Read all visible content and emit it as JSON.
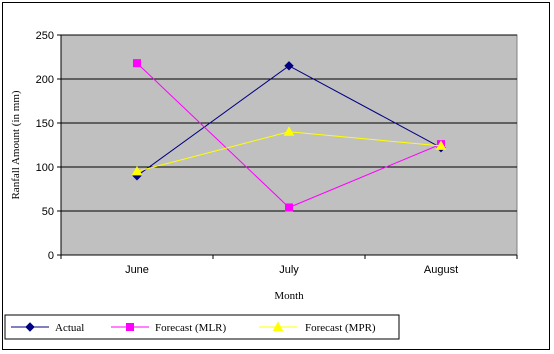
{
  "chart_data": {
    "type": "line",
    "categories": [
      "June",
      "July",
      "August"
    ],
    "series": [
      {
        "name": "Actual",
        "values": [
          90,
          215,
          122
        ],
        "color": "#000080",
        "marker": "diamond"
      },
      {
        "name": "Forecast (MLR)",
        "values": [
          218,
          54,
          126
        ],
        "color": "#ff00ff",
        "marker": "square"
      },
      {
        "name": "Forecast (MPR)",
        "values": [
          95,
          140,
          124
        ],
        "color": "#ffff00",
        "marker": "triangle"
      }
    ],
    "title": "",
    "xlabel": "Month",
    "ylabel": "Ranfall Amount (in mm)",
    "ylim": [
      0,
      250
    ],
    "yticks": [
      "0",
      "50",
      "100",
      "150",
      "200",
      "250"
    ],
    "grid": true,
    "plot_background": "#c0c0c0",
    "legend_position": "bottom"
  }
}
